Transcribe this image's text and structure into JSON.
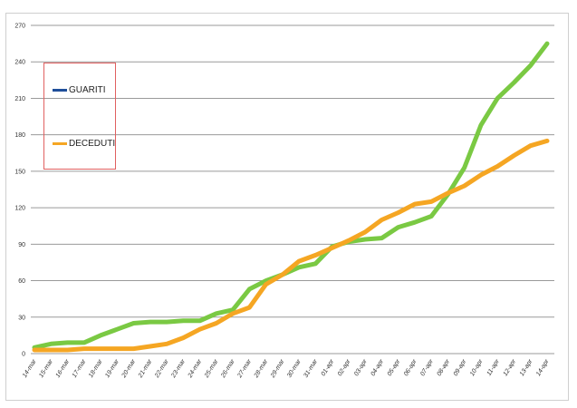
{
  "chart_data": {
    "type": "line",
    "title": "",
    "xlabel": "",
    "ylabel": "",
    "ylim": [
      0,
      270
    ],
    "yticks": [
      0,
      30,
      60,
      90,
      120,
      150,
      180,
      210,
      240,
      270
    ],
    "grid": true,
    "legend_position": "top-left",
    "categories": [
      "14-mar",
      "15-mar",
      "16-mar",
      "17-mar",
      "18-mar",
      "19-mar",
      "20-mar",
      "21-mar",
      "22-mar",
      "23-mar",
      "24-mar",
      "25-mar",
      "26-mar",
      "27-mar",
      "28-mar",
      "29-mar",
      "30-mar",
      "31-mar",
      "01-apr",
      "02-apr",
      "03-apr",
      "04-apr",
      "05-apr",
      "06-apr",
      "07-apr",
      "08-apr",
      "09-apr",
      "10-apr",
      "11-apr",
      "12-apr",
      "13-apr",
      "14-apr"
    ],
    "series": [
      {
        "name": "GUARITI",
        "legend_color": "#1f4e9a",
        "color": "#7ac943",
        "values": [
          5,
          8,
          9,
          9,
          15,
          20,
          25,
          26,
          26,
          27,
          27,
          33,
          36,
          53,
          60,
          65,
          71,
          74,
          88,
          92,
          94,
          95,
          104,
          108,
          113,
          131,
          153,
          188,
          210,
          223,
          237,
          255
        ]
      },
      {
        "name": "DECEDUTI",
        "legend_color": "#f5a623",
        "color": "#f5a623",
        "values": [
          3,
          3,
          3,
          4,
          4,
          4,
          4,
          6,
          8,
          13,
          20,
          25,
          33,
          38,
          57,
          65,
          76,
          81,
          87,
          93,
          100,
          110,
          116,
          123,
          125,
          132,
          138,
          147,
          154,
          163,
          171,
          175
        ]
      }
    ]
  }
}
